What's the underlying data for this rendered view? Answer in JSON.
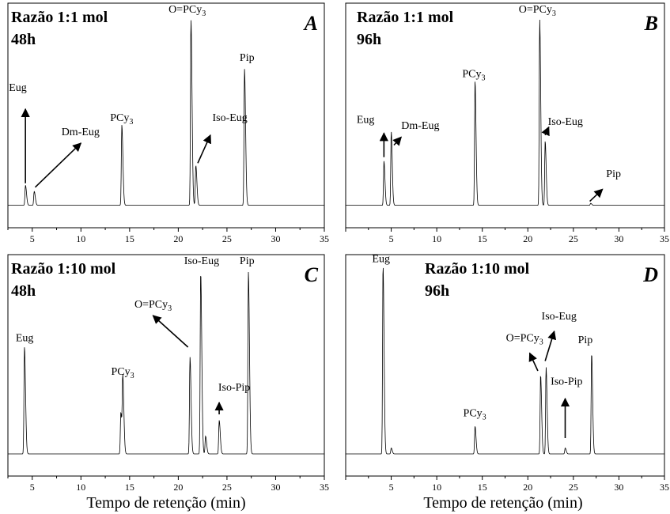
{
  "xlabel": "Tempo de retenção (min)",
  "chart_data": [
    {
      "type": "line",
      "panel": "A",
      "title_lines": [
        "Razão 1:1 mol",
        "48h"
      ],
      "xlim": [
        2.5,
        35
      ],
      "ylim": [
        0,
        100
      ],
      "xticks": [
        5,
        10,
        15,
        20,
        25,
        30,
        35
      ],
      "xlabel": "Tempo de retenção (min)",
      "peaks": [
        {
          "t": 4.3,
          "h": 10
        },
        {
          "t": 5.2,
          "h": 7
        },
        {
          "t": 14.2,
          "h": 40
        },
        {
          "t": 21.3,
          "h": 93
        },
        {
          "t": 21.8,
          "h": 20
        },
        {
          "t": 26.8,
          "h": 68
        }
      ],
      "labels": [
        {
          "text": "Eug",
          "x": 2.6,
          "y": 57,
          "arrow": [
            4.3,
            11,
            4.3,
            48
          ]
        },
        {
          "text": "Dm-Eug",
          "x": 8.0,
          "y": 35,
          "arrow": [
            5.3,
            9,
            10.0,
            31
          ]
        },
        {
          "text": "PCy",
          "sub": "3",
          "x": 13.0,
          "y": 42
        },
        {
          "text": "O=PCy",
          "sub": "3",
          "x": 19.0,
          "y": 96
        },
        {
          "text": "Iso-Eug",
          "x": 23.5,
          "y": 42,
          "arrow": [
            22.0,
            21,
            23.3,
            35
          ]
        },
        {
          "text": "Pip",
          "x": 26.3,
          "y": 72
        }
      ]
    },
    {
      "type": "line",
      "panel": "B",
      "title_lines": [
        "Razão 1:1 mol",
        "96h"
      ],
      "xlim": [
        0,
        35
      ],
      "ylim": [
        0,
        100
      ],
      "xticks": [
        5,
        10,
        15,
        20,
        25,
        30,
        35
      ],
      "xlabel": "Tempo de retenção (min)",
      "peaks": [
        {
          "t": 4.2,
          "h": 22
        },
        {
          "t": 5.0,
          "h": 37
        },
        {
          "t": 14.2,
          "h": 62
        },
        {
          "t": 21.3,
          "h": 93
        },
        {
          "t": 21.9,
          "h": 32
        },
        {
          "t": 26.9,
          "h": 1
        }
      ],
      "labels": [
        {
          "text": "Eug",
          "x": 1.2,
          "y": 41,
          "arrow": [
            4.2,
            24,
            4.2,
            36
          ]
        },
        {
          "text": "Dm-Eug",
          "x": 6.1,
          "y": 38,
          "arrow": [
            5.3,
            30,
            6.1,
            34
          ]
        },
        {
          "text": "PCy",
          "sub": "3",
          "x": 12.8,
          "y": 64
        },
        {
          "text": "O=PCy",
          "sub": "3",
          "x": 19.0,
          "y": 96
        },
        {
          "text": "Iso-Eug",
          "x": 22.2,
          "y": 40,
          "arrow": [
            21.9,
            35,
            22.3,
            39
          ]
        },
        {
          "text": "Pip",
          "x": 28.6,
          "y": 14,
          "arrow": [
            26.8,
            2,
            28.2,
            8
          ]
        }
      ]
    },
    {
      "type": "line",
      "panel": "C",
      "title_lines": [
        "Razão 1:10 mol",
        "48h"
      ],
      "xlim": [
        2.5,
        35
      ],
      "ylim": [
        0,
        100
      ],
      "xticks": [
        5,
        10,
        15,
        20,
        25,
        30,
        35
      ],
      "xlabel": "Tempo de retenção (min)",
      "peaks": [
        {
          "t": 4.2,
          "h": 54
        },
        {
          "t": 14.1,
          "h": 21
        },
        {
          "t": 14.3,
          "h": 37
        },
        {
          "t": 21.2,
          "h": 49
        },
        {
          "t": 22.3,
          "h": 92
        },
        {
          "t": 22.8,
          "h": 9
        },
        {
          "t": 24.2,
          "h": 17
        },
        {
          "t": 27.2,
          "h": 92
        }
      ],
      "labels": [
        {
          "text": "Eug",
          "x": 3.3,
          "y": 57
        },
        {
          "text": "PCy",
          "sub": "3",
          "x": 13.1,
          "y": 40
        },
        {
          "text": "O=PCy",
          "sub": "3",
          "x": 15.5,
          "y": 74,
          "arrow": [
            21.0,
            54,
            17.4,
            70
          ]
        },
        {
          "text": "Iso-Eug",
          "x": 20.6,
          "y": 96
        },
        {
          "text": "Pip",
          "x": 26.3,
          "y": 96
        },
        {
          "text": "Iso-Pip",
          "x": 24.1,
          "y": 32,
          "arrow": [
            24.2,
            20,
            24.2,
            26
          ]
        }
      ]
    },
    {
      "type": "line",
      "panel": "D",
      "title_lines": [
        "Razão 1:10 mol",
        "96h"
      ],
      "xlim": [
        0,
        35
      ],
      "ylim": [
        0,
        100
      ],
      "xticks": [
        5,
        10,
        15,
        20,
        25,
        30,
        35
      ],
      "xlabel": "Tempo de retenção (min)",
      "peaks": [
        {
          "t": 4.1,
          "h": 96
        },
        {
          "t": 5.0,
          "h": 3
        },
        {
          "t": 14.2,
          "h": 14
        },
        {
          "t": 21.4,
          "h": 40
        },
        {
          "t": 22.0,
          "h": 44
        },
        {
          "t": 24.1,
          "h": 3
        },
        {
          "t": 27.0,
          "h": 51
        }
      ],
      "labels": [
        {
          "text": "Eug",
          "x": 2.9,
          "y": 97
        },
        {
          "text": "PCy",
          "sub": "3",
          "x": 12.9,
          "y": 19
        },
        {
          "text": "O=PCy",
          "sub": "3",
          "x": 17.6,
          "y": 57,
          "arrow": [
            21.1,
            42,
            20.2,
            51
          ]
        },
        {
          "text": "Iso-Eug",
          "x": 21.5,
          "y": 68,
          "arrow": [
            21.9,
            47,
            22.9,
            62
          ]
        },
        {
          "text": "Pip",
          "x": 25.5,
          "y": 56
        },
        {
          "text": "Iso-Pip",
          "x": 22.5,
          "y": 35,
          "arrow": [
            24.1,
            8,
            24.1,
            28
          ]
        }
      ]
    }
  ]
}
